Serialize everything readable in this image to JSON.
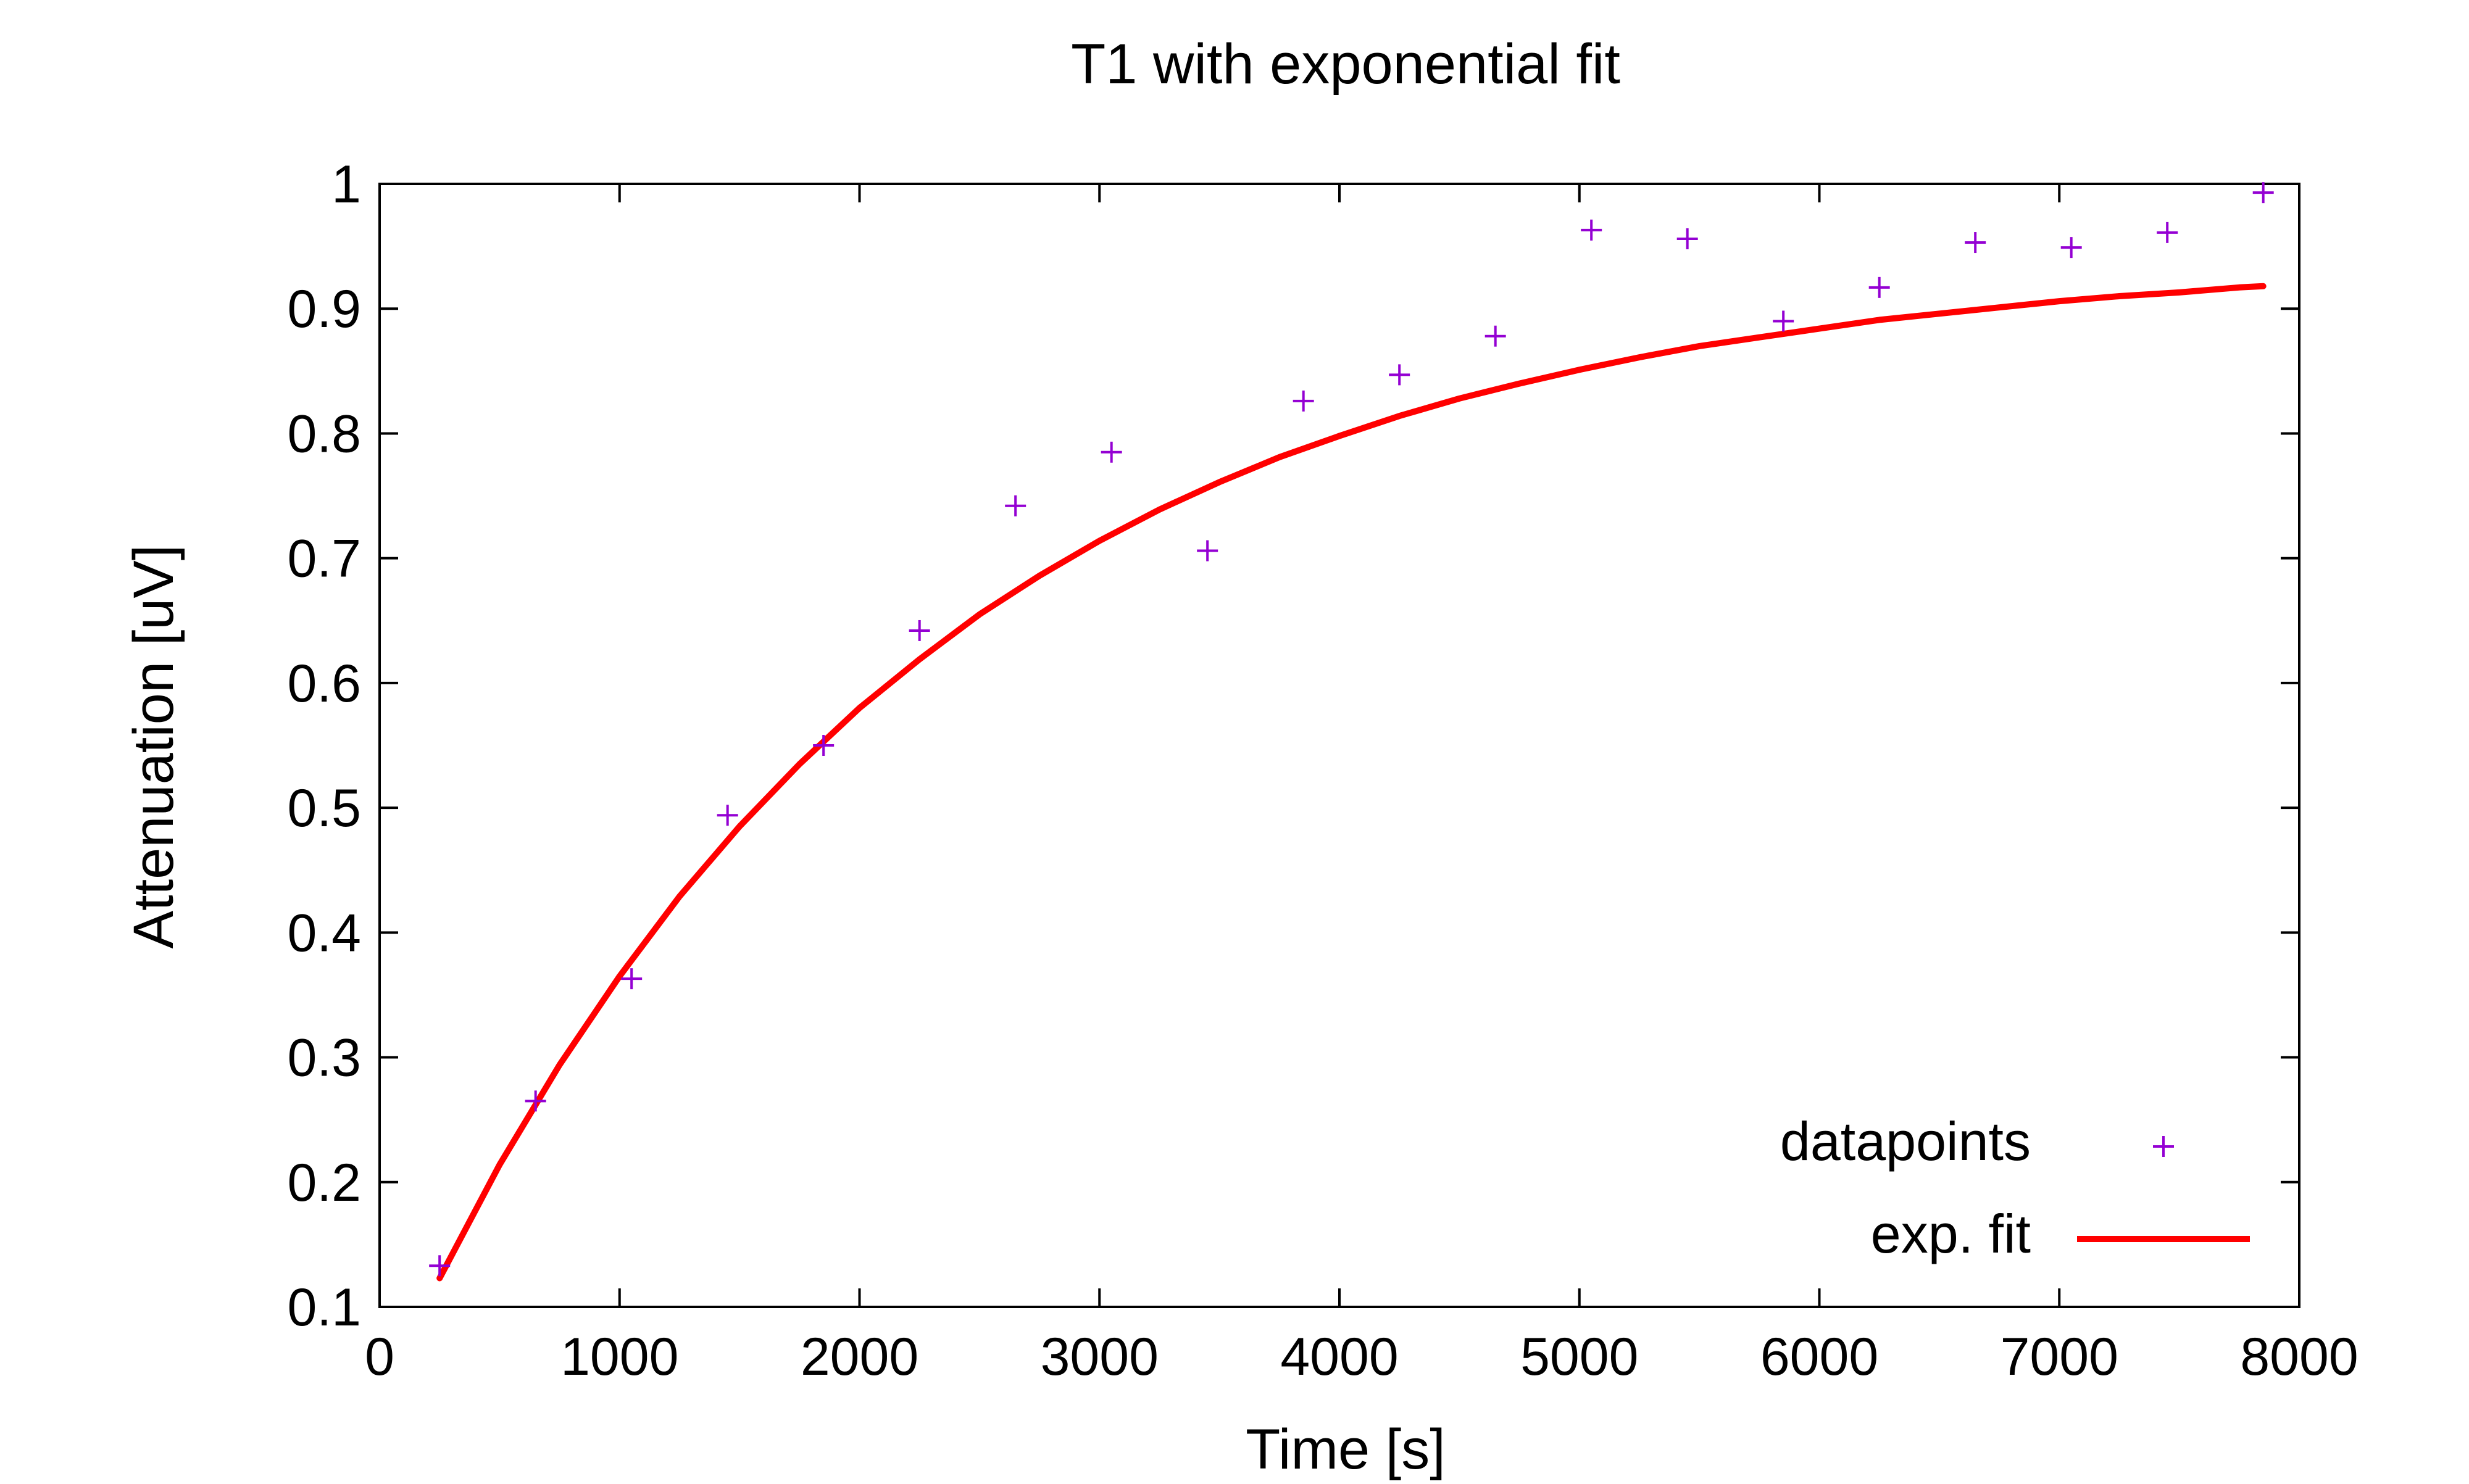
{
  "chart_data": {
    "type": "scatter",
    "title": "T1 with exponential fit",
    "xlabel": "Time [s]",
    "ylabel": "Attenuation [uV]",
    "xlim": [
      0,
      8000
    ],
    "ylim": [
      0.1,
      1.0
    ],
    "xticks": [
      "0",
      "1000",
      "2000",
      "3000",
      "4000",
      "5000",
      "6000",
      "7000",
      "8000"
    ],
    "yticks": [
      "0.1",
      "0.2",
      "0.3",
      "0.4",
      "0.5",
      "0.6",
      "0.7",
      "0.8",
      "0.9",
      "1"
    ],
    "grid": false,
    "legend_position": "bottom-right",
    "series": [
      {
        "name": "datapoints",
        "kind": "points",
        "marker": "plus",
        "color": "#9400D3",
        "x": [
          250,
          650,
          1050,
          1450,
          1850,
          2250,
          2650,
          3050,
          3450,
          3850,
          4250,
          4650,
          5050,
          5450,
          5850,
          6250,
          6650,
          7050,
          7450,
          7850
        ],
        "y": [
          0.133,
          0.265,
          0.363,
          0.494,
          0.55,
          0.642,
          0.742,
          0.785,
          0.706,
          0.826,
          0.847,
          0.878,
          0.963,
          0.956,
          0.89,
          0.917,
          0.953,
          0.949,
          0.961,
          0.993
        ]
      },
      {
        "name": "exp. fit",
        "kind": "line",
        "color": "#FF0000",
        "x": [
          250,
          500,
          750,
          1000,
          1250,
          1500,
          1750,
          2000,
          2250,
          2500,
          2750,
          3000,
          3250,
          3500,
          3750,
          4000,
          4250,
          4500,
          4750,
          5000,
          5250,
          5500,
          5750,
          6000,
          6250,
          6500,
          6750,
          7000,
          7250,
          7500,
          7750,
          7850
        ],
        "y": [
          0.123,
          0.214,
          0.294,
          0.365,
          0.429,
          0.485,
          0.535,
          0.58,
          0.619,
          0.655,
          0.686,
          0.714,
          0.739,
          0.761,
          0.781,
          0.798,
          0.814,
          0.828,
          0.84,
          0.851,
          0.861,
          0.87,
          0.877,
          0.884,
          0.891,
          0.896,
          0.901,
          0.906,
          0.91,
          0.913,
          0.917,
          0.918
        ]
      }
    ]
  }
}
